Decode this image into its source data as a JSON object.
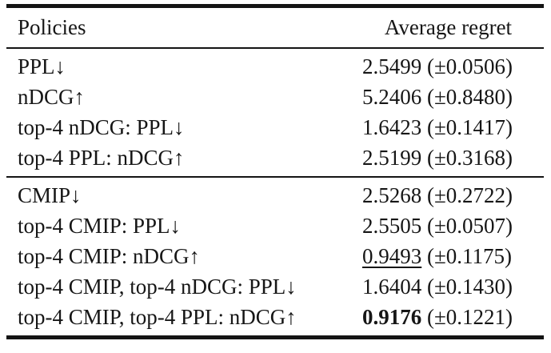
{
  "table": {
    "header": {
      "policies": "Policies",
      "avg_regret": "Average regret"
    },
    "sections": [
      {
        "rows": [
          {
            "policy": "PPL↓",
            "value": "2.5499",
            "pm": "(±0.0506)",
            "emphasis": "plain"
          },
          {
            "policy": "nDCG↑",
            "value": "5.2406",
            "pm": "(±0.8480)",
            "emphasis": "plain"
          },
          {
            "policy": "top-4 nDCG: PPL↓",
            "value": "1.6423",
            "pm": "(±0.1417)",
            "emphasis": "plain"
          },
          {
            "policy": "top-4 PPL: nDCG↑",
            "value": "2.5199",
            "pm": "(±0.3168)",
            "emphasis": "plain"
          }
        ]
      },
      {
        "rows": [
          {
            "policy": "CMIP↓",
            "value": "2.5268",
            "pm": "(±0.2722)",
            "emphasis": "plain"
          },
          {
            "policy": "top-4 CMIP: PPL↓",
            "value": "2.5505",
            "pm": "(±0.0507)",
            "emphasis": "plain"
          },
          {
            "policy": "top-4 CMIP: nDCG↑",
            "value": "0.9493",
            "pm": "(±0.1175)",
            "emphasis": "underline"
          },
          {
            "policy": "top-4 CMIP, top-4 nDCG: PPL↓",
            "value": "1.6404",
            "pm": "(±0.1430)",
            "emphasis": "plain"
          },
          {
            "policy": "top-4 CMIP, top-4 PPL: nDCG↑",
            "value": "0.9176",
            "pm": "(±0.1221)",
            "emphasis": "bold"
          }
        ]
      }
    ]
  }
}
